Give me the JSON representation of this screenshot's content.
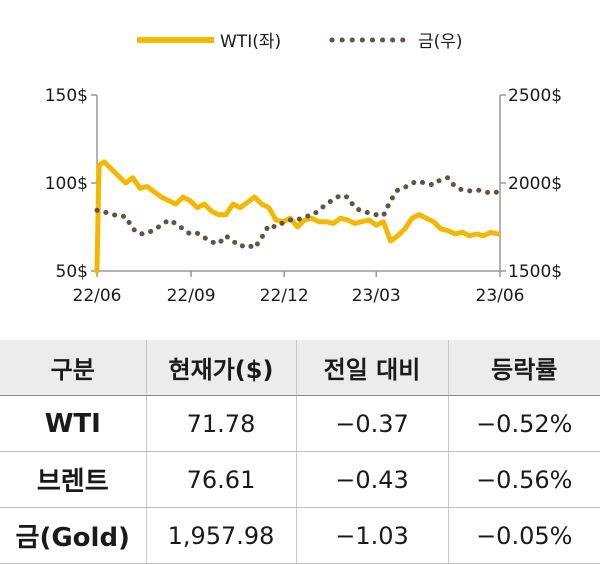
{
  "chart_data": {
    "type": "line",
    "legend": {
      "placement": "top-center",
      "entries": [
        "WTI(좌)",
        "금(우)"
      ]
    },
    "x_ticks": [
      "22/06",
      "22/09",
      "22/12",
      "23/03",
      "23/06"
    ],
    "y_left": {
      "ticks": [
        "150$",
        "100$",
        "50$"
      ],
      "range": [
        50,
        150
      ]
    },
    "y_right": {
      "ticks": [
        "2500$",
        "2000$",
        "1500$"
      ],
      "range": [
        1500,
        2500
      ]
    },
    "grid": false,
    "colors": {
      "wti": "#f5b800",
      "gold": "#5f5446",
      "axis": "#999999"
    },
    "series": [
      {
        "name": "WTI(좌)",
        "axis": "left",
        "style": "solid",
        "x": [
          "2022-06-01",
          "2022-06-03",
          "2022-06-08",
          "2022-06-15",
          "2022-06-22",
          "2022-06-29",
          "2022-07-06",
          "2022-07-13",
          "2022-07-20",
          "2022-07-27",
          "2022-08-03",
          "2022-08-10",
          "2022-08-17",
          "2022-08-24",
          "2022-08-31",
          "2022-09-07",
          "2022-09-14",
          "2022-09-21",
          "2022-09-28",
          "2022-10-05",
          "2022-10-12",
          "2022-10-19",
          "2022-10-26",
          "2022-11-02",
          "2022-11-09",
          "2022-11-16",
          "2022-11-23",
          "2022-11-30",
          "2022-12-07",
          "2022-12-14",
          "2022-12-21",
          "2022-12-28",
          "2023-01-04",
          "2023-01-11",
          "2023-01-18",
          "2023-01-25",
          "2023-02-01",
          "2023-02-08",
          "2023-02-15",
          "2023-02-22",
          "2023-03-01",
          "2023-03-08",
          "2023-03-15",
          "2023-03-22",
          "2023-03-29",
          "2023-04-05",
          "2023-04-12",
          "2023-04-19",
          "2023-04-26",
          "2023-05-03",
          "2023-05-10",
          "2023-05-17",
          "2023-05-24",
          "2023-05-31",
          "2023-06-07",
          "2023-06-14",
          "2023-06-21",
          "2023-06-28"
        ],
        "values": [
          50,
          110,
          112,
          108,
          104,
          100,
          103,
          97,
          98,
          95,
          92,
          90,
          88,
          92,
          90,
          86,
          88,
          84,
          82,
          82,
          88,
          86,
          89,
          92,
          88,
          86,
          79,
          78,
          80,
          75,
          79,
          80,
          78,
          78,
          77,
          80,
          79,
          77,
          78,
          79,
          76,
          78,
          67,
          70,
          74,
          80,
          82,
          80,
          78,
          74,
          73,
          71,
          72,
          70,
          71,
          70,
          72,
          71
        ]
      },
      {
        "name": "금(우)",
        "axis": "right",
        "style": "dotted",
        "x": [
          "2022-06-01",
          "2022-06-08",
          "2022-06-15",
          "2022-06-22",
          "2022-06-29",
          "2022-07-06",
          "2022-07-13",
          "2022-07-20",
          "2022-07-27",
          "2022-08-03",
          "2022-08-10",
          "2022-08-17",
          "2022-08-24",
          "2022-08-31",
          "2022-09-07",
          "2022-09-14",
          "2022-09-21",
          "2022-09-28",
          "2022-10-05",
          "2022-10-12",
          "2022-10-19",
          "2022-10-26",
          "2022-11-02",
          "2022-11-09",
          "2022-11-16",
          "2022-11-23",
          "2022-11-30",
          "2022-12-07",
          "2022-12-14",
          "2022-12-21",
          "2022-12-28",
          "2023-01-04",
          "2023-01-11",
          "2023-01-18",
          "2023-01-25",
          "2023-02-01",
          "2023-02-08",
          "2023-02-15",
          "2023-02-22",
          "2023-03-01",
          "2023-03-08",
          "2023-03-15",
          "2023-03-22",
          "2023-03-29",
          "2023-04-05",
          "2023-04-12",
          "2023-04-19",
          "2023-04-26",
          "2023-05-03",
          "2023-05-10",
          "2023-05-17",
          "2023-05-24",
          "2023-05-31",
          "2023-06-07",
          "2023-06-14",
          "2023-06-21",
          "2023-06-28"
        ],
        "values": [
          1845,
          1835,
          1825,
          1810,
          1810,
          1740,
          1710,
          1715,
          1735,
          1760,
          1790,
          1770,
          1740,
          1710,
          1715,
          1690,
          1665,
          1655,
          1700,
          1670,
          1640,
          1650,
          1630,
          1690,
          1760,
          1750,
          1775,
          1790,
          1790,
          1810,
          1815,
          1845,
          1880,
          1905,
          1930,
          1920,
          1860,
          1840,
          1830,
          1820,
          1815,
          1900,
          1960,
          1975,
          2000,
          2010,
          1995,
          1990,
          2020,
          2030,
          1980,
          1960,
          1955,
          1960,
          1955,
          1940,
          1950
        ]
      }
    ]
  },
  "table": {
    "headers": [
      "구분",
      "현재가($)",
      "전일 대비",
      "등락률"
    ],
    "rows": [
      [
        "WTI",
        "71.78",
        "−0.37",
        "−0.52%"
      ],
      [
        "브렌트",
        "76.61",
        "−0.43",
        "−0.56%"
      ],
      [
        "금(Gold)",
        "1,957.98",
        "−1.03",
        "−0.05%"
      ]
    ]
  }
}
